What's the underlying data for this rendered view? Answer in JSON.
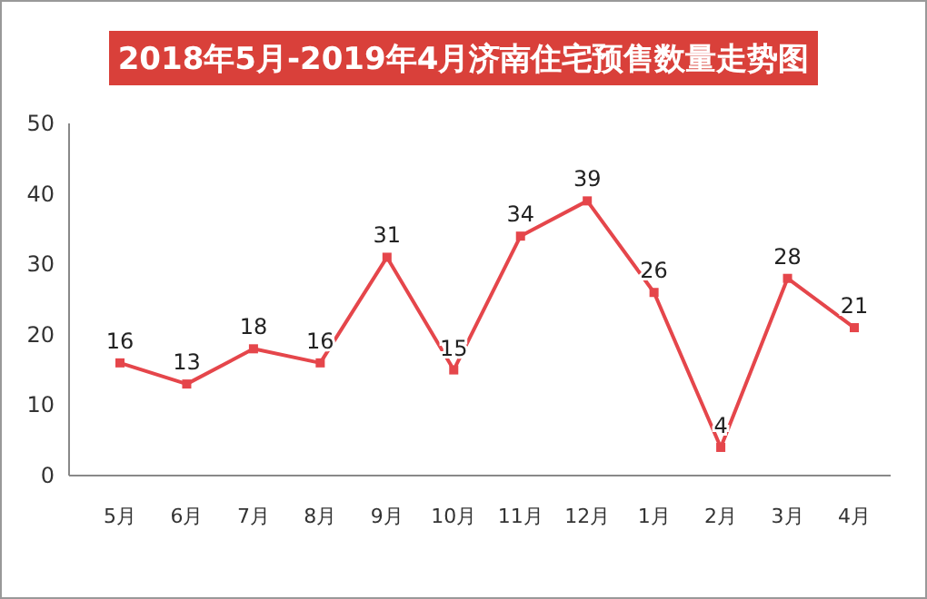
{
  "chart_data": {
    "type": "line",
    "title": "2018年5月-2019年4月济南住宅预售数量走势图",
    "categories": [
      "5月",
      "6月",
      "7月",
      "8月",
      "9月",
      "10月",
      "11月",
      "12月",
      "1月",
      "2月",
      "3月",
      "4月"
    ],
    "series": [
      {
        "color": "#e5464b",
        "values": [
          16,
          13,
          18,
          16,
          31,
          15,
          34,
          39,
          26,
          4,
          28,
          21
        ]
      }
    ],
    "ylim": [
      0,
      50
    ],
    "yticks": [
      0,
      10,
      20,
      30,
      40,
      50
    ],
    "data_labels": true,
    "marker": "square",
    "line_style": "solid"
  }
}
